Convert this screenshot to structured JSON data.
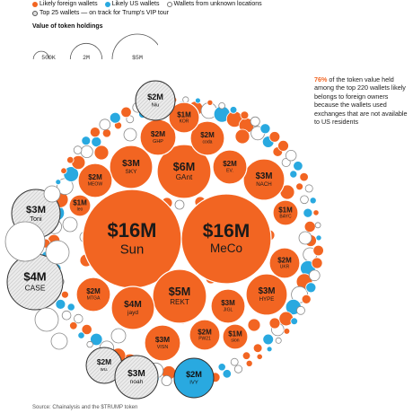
{
  "legend": {
    "foreign": "Likely foreign wallets",
    "us": "Likely US wallets",
    "unknown": "Wallets from unknown locations",
    "top25": "Top 25 wallets — on track for Trump's VIP tour"
  },
  "size_legend": {
    "title": "Value of token holdings",
    "items": [
      {
        "label": "500K",
        "value": 0.5
      },
      {
        "label": "2M",
        "value": 2
      },
      {
        "label": "$5M",
        "value": 5
      }
    ]
  },
  "annotation": {
    "pct": "76%",
    "text": " of the token value held among the top 220 wallets likely belongs to foreign owners because the wallets used exchanges that are not available to US residents"
  },
  "source": "Source: Chainalysis and the $TRUMP token",
  "colors": {
    "foreign": "#f26522",
    "us": "#29a9e0",
    "unknown": "#ffffff",
    "top_outside": "#e0e0e0"
  },
  "chart_data": {
    "type": "bubble",
    "unit": "USD millions",
    "categories": [
      "Likely foreign wallets",
      "Likely US wallets",
      "Wallets from unknown locations"
    ],
    "labeled_wallets": [
      {
        "name": "Sun",
        "value_label": "$16M",
        "value": 16,
        "category": "foreign"
      },
      {
        "name": "MeCo",
        "value_label": "$16M",
        "value": 16,
        "category": "foreign"
      },
      {
        "name": "GAnt",
        "value_label": "$6M",
        "value": 6,
        "category": "foreign"
      },
      {
        "name": "REKT",
        "value_label": "$5M",
        "value": 5,
        "category": "foreign"
      },
      {
        "name": "jayd",
        "value_label": "$4M",
        "value": 4,
        "category": "foreign"
      },
      {
        "name": "SKY",
        "value_label": "$3M",
        "value": 3,
        "category": "foreign"
      },
      {
        "name": "NACH",
        "value_label": "$3M",
        "value": 3,
        "category": "foreign"
      },
      {
        "name": "HYPE",
        "value_label": "$3M",
        "value": 3,
        "category": "foreign"
      },
      {
        "name": "JIGL",
        "value_label": "$3M",
        "value": 3,
        "category": "foreign"
      },
      {
        "name": "VISN",
        "value_label": "$3M",
        "value": 3,
        "category": "foreign"
      },
      {
        "name": "GHP",
        "value_label": "$2M",
        "value": 2,
        "category": "foreign"
      },
      {
        "name": "coda",
        "value_label": "$2M",
        "value": 2,
        "category": "foreign"
      },
      {
        "name": "EV.",
        "value_label": "$2M",
        "value": 2,
        "category": "foreign"
      },
      {
        "name": "MEOW",
        "value_label": "$2M",
        "value": 2,
        "category": "foreign"
      },
      {
        "name": "UKR",
        "value_label": "$2M",
        "value": 2,
        "category": "foreign"
      },
      {
        "name": "MTGA",
        "value_label": "$2M",
        "value": 2,
        "category": "foreign"
      },
      {
        "name": "PW21",
        "value_label": "$2M",
        "value": 2,
        "category": "foreign"
      },
      {
        "name": "KOR",
        "value_label": "$1M",
        "value": 1,
        "category": "foreign"
      },
      {
        "name": "BAYC",
        "value_label": "$1M",
        "value": 1,
        "category": "foreign"
      },
      {
        "name": "sion",
        "value_label": "$1M",
        "value": 1,
        "category": "foreign"
      },
      {
        "name": "leo",
        "value_label": "$1M",
        "value": 1,
        "category": "foreign"
      },
      {
        "name": "Niu",
        "value_label": "$2M",
        "value": 2,
        "category": "unknown"
      },
      {
        "name": "Toni",
        "value_label": "$3M",
        "value": 3,
        "category": "unknown"
      },
      {
        "name": "CASE",
        "value_label": "$4M",
        "value": 4,
        "category": "unknown"
      },
      {
        "name": "wu.",
        "value_label": "$2M",
        "value": 2,
        "category": "unknown"
      },
      {
        "name": "noah",
        "value_label": "$3M",
        "value": 3,
        "category": "unknown"
      },
      {
        "name": "IVY",
        "value_label": "$2M",
        "value": 2,
        "category": "us"
      }
    ]
  }
}
